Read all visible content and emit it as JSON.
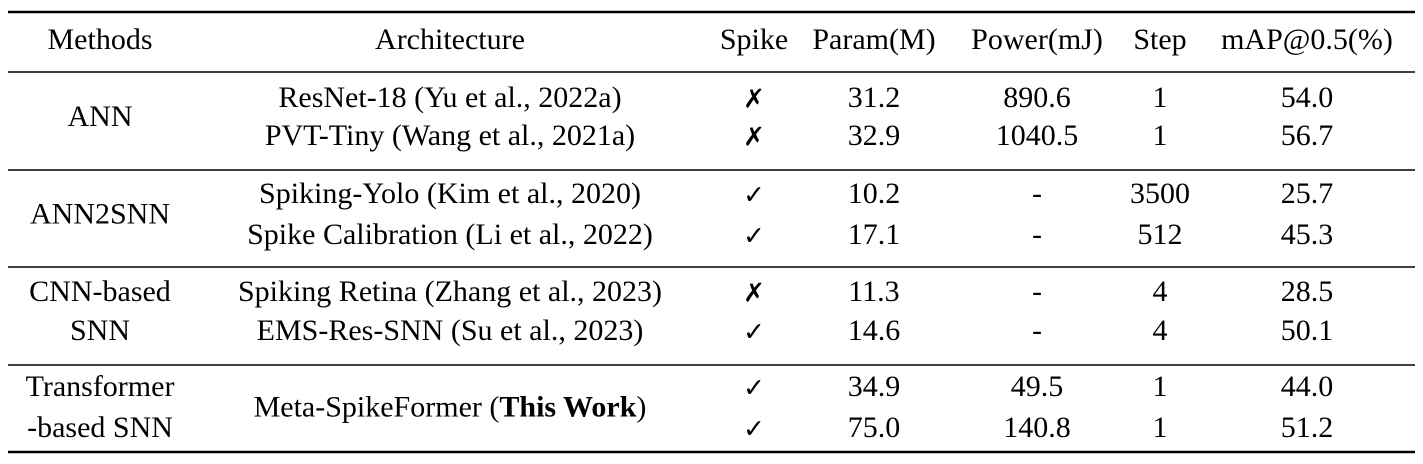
{
  "header": [
    "Methods",
    "Architecture",
    "Spike",
    "Param(M)",
    "Power(mJ)",
    "Step",
    "mAP@0.5(%)"
  ],
  "groups": [
    {
      "method": [
        "ANN"
      ],
      "rows": [
        {
          "architecture": "ResNet-18 (Yu et al., 2022a)",
          "spike": "✗",
          "param": "31.2",
          "power": "890.6",
          "step": "1",
          "map": "54.0"
        },
        {
          "architecture": "PVT-Tiny (Wang et al., 2021a)",
          "spike": "✗",
          "param": "32.9",
          "power": "1040.5",
          "step": "1",
          "map": "56.7"
        }
      ]
    },
    {
      "method": [
        "ANN2SNN"
      ],
      "rows": [
        {
          "architecture": "Spiking-Yolo (Kim et al., 2020)",
          "spike": "✓",
          "param": "10.2",
          "power": "-",
          "step": "3500",
          "map": "25.7"
        },
        {
          "architecture": "Spike Calibration (Li et al., 2022)",
          "spike": "✓",
          "param": "17.1",
          "power": "-",
          "step": "512",
          "map": "45.3"
        }
      ]
    },
    {
      "method": [
        "CNN-based",
        "SNN"
      ],
      "rows": [
        {
          "architecture": "Spiking Retina (Zhang et al., 2023)",
          "spike": "✗",
          "param": "11.3",
          "power": "-",
          "step": "4",
          "map": "28.5"
        },
        {
          "architecture": "EMS-Res-SNN (Su et al., 2023)",
          "spike": "✓",
          "param": "14.6",
          "power": "-",
          "step": "4",
          "map": "50.1"
        }
      ]
    },
    {
      "method": [
        "Transformer",
        "-based SNN"
      ],
      "architecture_parts": [
        "Meta-SpikeFormer (",
        "This Work",
        ")"
      ],
      "rows": [
        {
          "spike": "✓",
          "param": "34.9",
          "power": "49.5",
          "step": "1",
          "map": "44.0"
        },
        {
          "spike": "✓",
          "param": "75.0",
          "power": "140.8",
          "step": "1",
          "map": "51.2"
        }
      ]
    }
  ]
}
